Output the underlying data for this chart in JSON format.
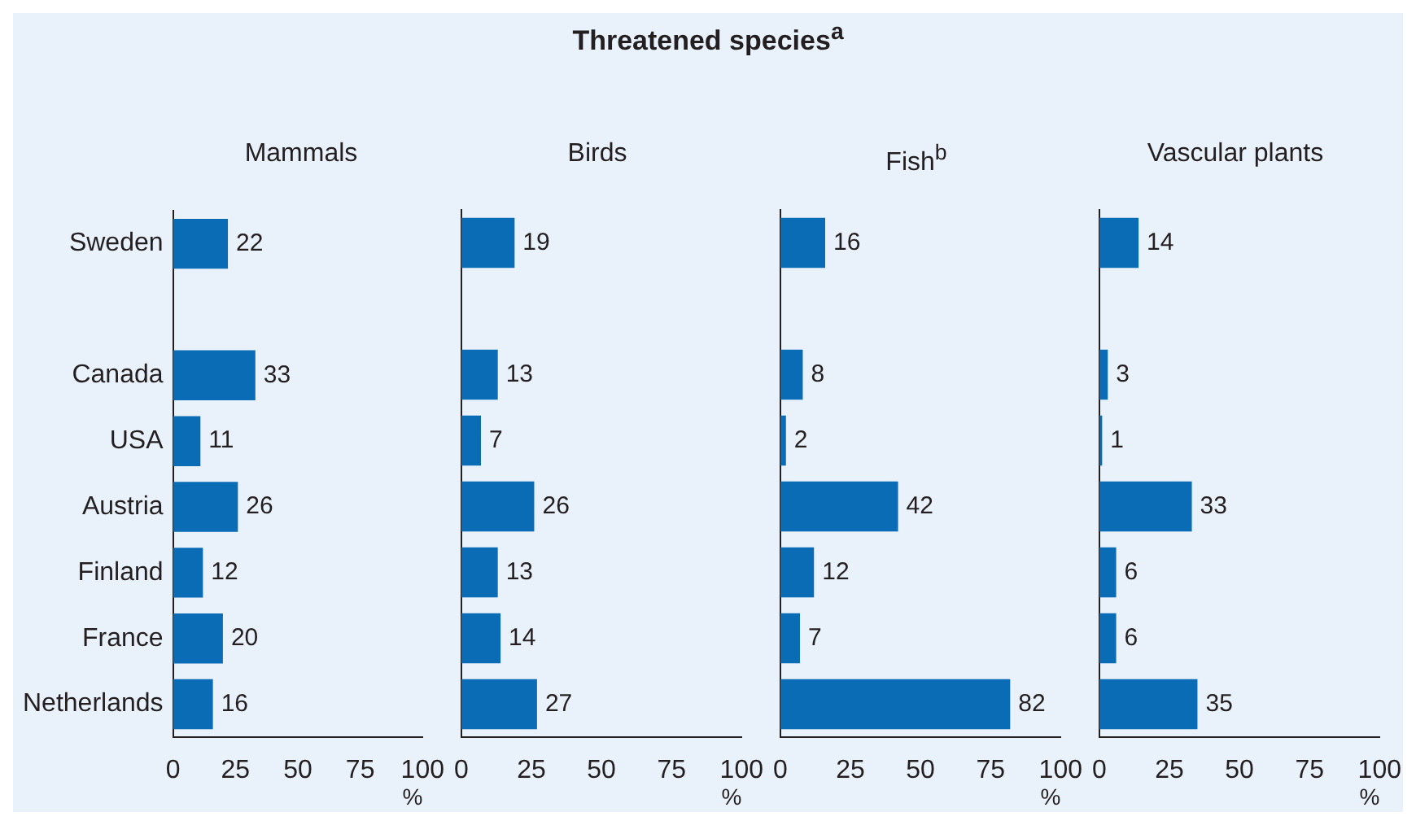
{
  "chart_data": [
    {
      "type": "bar",
      "orientation": "horizontal",
      "title": "Mammals",
      "annotations": [
        "Threatened species$^{a}$"
      ],
      "xlabel": "%",
      "categories": [
        "Sweden",
        null,
        "Canada",
        "USA",
        "Austria",
        "Finland",
        "France",
        "Netherlands"
      ],
      "values": [
        22,
        null,
        33,
        11,
        26,
        12,
        20,
        16
      ],
      "color": "#0b6cb6",
      "xlim": [
        0,
        100
      ],
      "xticks": [
        0,
        25,
        50,
        75,
        100
      ],
      "grid": false,
      "legend": false,
      "data_labels": true
    },
    {
      "type": "bar",
      "orientation": "horizontal",
      "title": "Birds",
      "xlabel": "%",
      "categories": [
        null,
        null,
        null,
        null,
        null,
        null,
        null,
        null
      ],
      "values": [
        19,
        null,
        13,
        7,
        26,
        13,
        14,
        27
      ],
      "color": "#0b6cb6",
      "xlim": [
        0,
        100
      ],
      "xticks": [
        0,
        25,
        50,
        75,
        100
      ],
      "grid": false,
      "legend": false,
      "data_labels": true,
      "tick_labels": "x"
    },
    {
      "type": "bar",
      "orientation": "horizontal",
      "title": "Fish$^{b}$",
      "xlabel": "%",
      "categories": [
        null,
        null,
        null,
        null,
        null,
        null,
        null,
        null
      ],
      "values": [
        16,
        null,
        8,
        2,
        42,
        12,
        7,
        82
      ],
      "color": "#0b6cb6",
      "xlim": [
        0,
        100
      ],
      "xticks": [
        0,
        25,
        50,
        75,
        100
      ],
      "grid": false,
      "legend": false,
      "data_labels": true,
      "tick_labels": "x"
    },
    {
      "type": "bar",
      "orientation": "horizontal",
      "title": "Vascular plants",
      "xlabel": "%",
      "categories": [
        null,
        null,
        null,
        null,
        null,
        null,
        null,
        null
      ],
      "values": [
        14,
        null,
        3,
        1,
        33,
        6,
        6,
        35
      ],
      "color": "#0b6cb6",
      "xlim": [
        0,
        100
      ],
      "xticks": [
        0,
        25,
        50,
        75,
        100
      ],
      "grid": false,
      "legend": false,
      "data_labels": true,
      "tick_labels": "x"
    }
  ]
}
